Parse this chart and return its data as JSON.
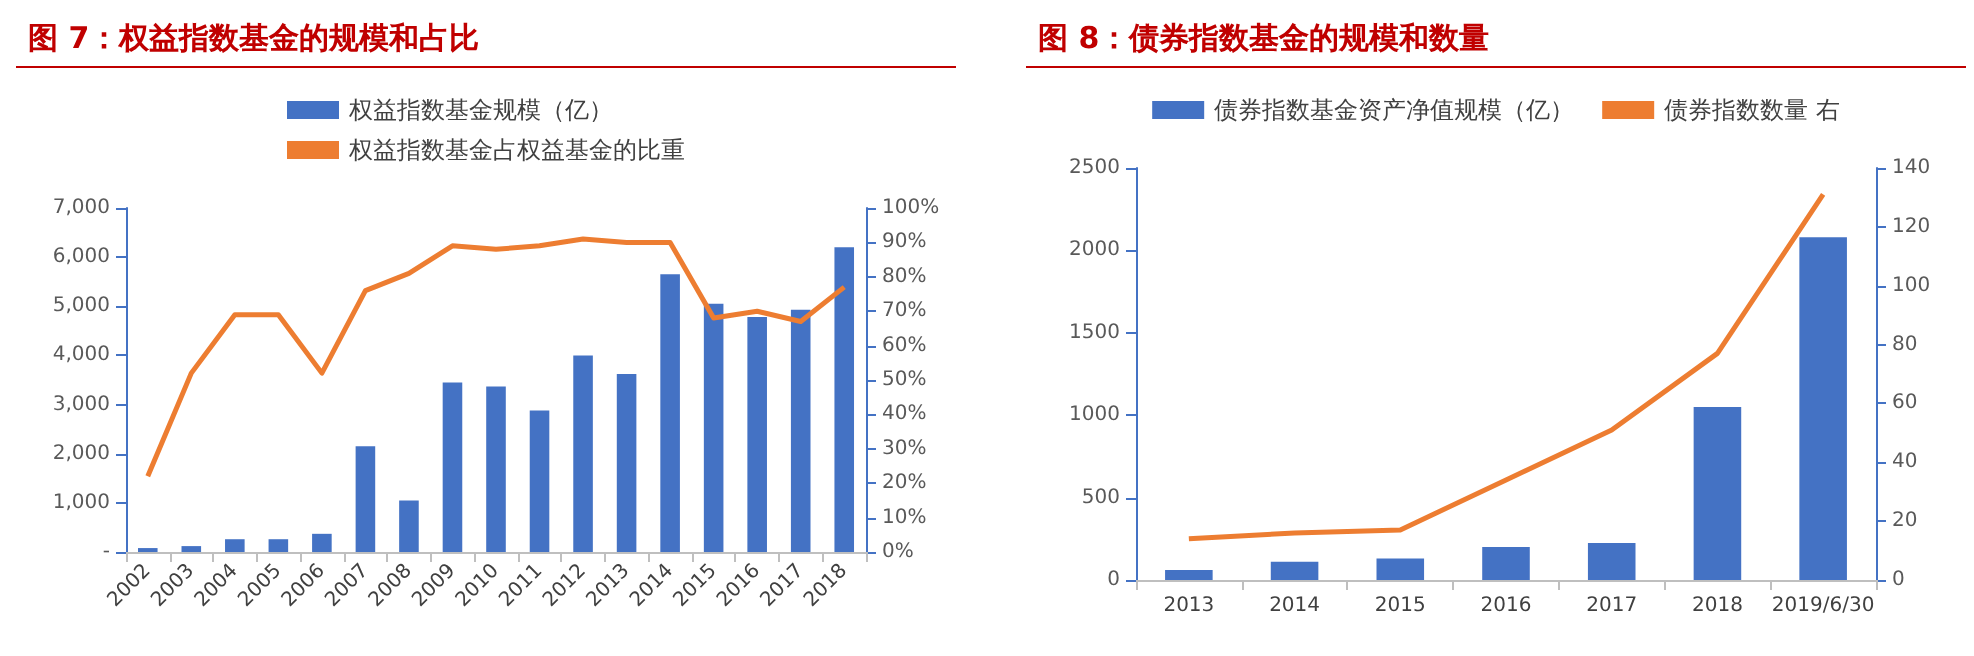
{
  "chart_data": [
    {
      "type": "bar",
      "title": "图 7：权益指数基金的规模和占比",
      "categories": [
        "2002",
        "2003",
        "2004",
        "2005",
        "2006",
        "2007",
        "2008",
        "2009",
        "2010",
        "2011",
        "2012",
        "2013",
        "2014",
        "2015",
        "2016",
        "2017",
        "2018"
      ],
      "series": [
        {
          "name": "权益指数基金规模（亿）",
          "color": "#4472c4",
          "values": [
            80,
            120,
            260,
            260,
            370,
            2150,
            1050,
            3450,
            3370,
            2880,
            4000,
            3620,
            5650,
            5050,
            4780,
            4930,
            6200
          ]
        },
        {
          "name": "权益指数基金占权益基金的比重",
          "type": "line",
          "axis": "y2",
          "color": "#ed7d31",
          "values": [
            22,
            52,
            69,
            69,
            52,
            76,
            81,
            89,
            88,
            89,
            91,
            90,
            90,
            68,
            70,
            67,
            77
          ]
        }
      ],
      "ylim": [
        0,
        7000
      ],
      "yticks": [
        {
          "value": 0,
          "label": "-"
        },
        {
          "value": 1000,
          "label": "1,000"
        },
        {
          "value": 2000,
          "label": "2,000"
        },
        {
          "value": 3000,
          "label": "3,000"
        },
        {
          "value": 4000,
          "label": "4,000"
        },
        {
          "value": 5000,
          "label": "5,000"
        },
        {
          "value": 6000,
          "label": "6,000"
        },
        {
          "value": 7000,
          "label": "7,000"
        }
      ],
      "y2lim": [
        0,
        100
      ],
      "y2ticks": [
        {
          "value": 0,
          "label": "0%"
        },
        {
          "value": 10,
          "label": "10%"
        },
        {
          "value": 20,
          "label": "20%"
        },
        {
          "value": 30,
          "label": "30%"
        },
        {
          "value": 40,
          "label": "40%"
        },
        {
          "value": 50,
          "label": "50%"
        },
        {
          "value": 60,
          "label": "60%"
        },
        {
          "value": 70,
          "label": "70%"
        },
        {
          "value": 80,
          "label": "80%"
        },
        {
          "value": 90,
          "label": "90%"
        },
        {
          "value": 100,
          "label": "100%"
        }
      ],
      "legend": "top",
      "grid": false
    },
    {
      "type": "bar",
      "title": "图 8：债券指数基金的规模和数量",
      "categories": [
        "2013",
        "2014",
        "2015",
        "2016",
        "2017",
        "2018",
        "2019/6/30"
      ],
      "series": [
        {
          "name": "债券指数基金资产净值规模（亿）",
          "color": "#4472c4",
          "values": [
            60,
            110,
            130,
            200,
            225,
            1050,
            2080
          ]
        },
        {
          "name": "债券指数数量 右",
          "type": "line",
          "axis": "y2",
          "color": "#ed7d31",
          "values": [
            14,
            16,
            17,
            34,
            51,
            77,
            131
          ]
        }
      ],
      "ylim": [
        0,
        2500
      ],
      "yticks": [
        0,
        500,
        1000,
        1500,
        2000,
        2500
      ],
      "y2lim": [
        0,
        140
      ],
      "y2ticks": [
        0,
        20,
        40,
        60,
        80,
        100,
        120,
        140
      ],
      "legend": "top",
      "grid": false
    }
  ]
}
